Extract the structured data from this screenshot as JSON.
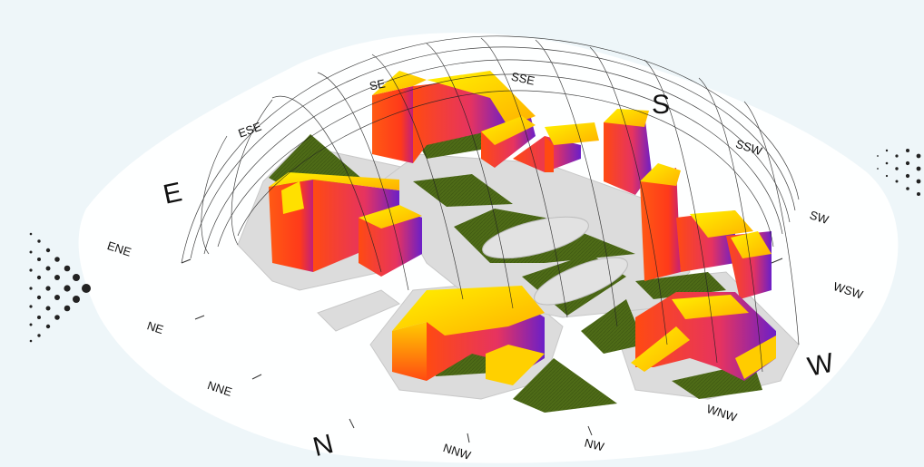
{
  "compass": {
    "E": "E",
    "S": "S",
    "W": "W",
    "N": "N",
    "ESE": "ESE",
    "SE": "SE",
    "SSE": "SSE",
    "SSW": "SSW",
    "SW": "SW",
    "WSW": "WSW",
    "WNW": "WNW",
    "NW": "NW",
    "NNW": "NNW",
    "NNE": "NNE",
    "NE": "NE",
    "ENE": "ENE"
  },
  "colors": {
    "background": "#eef6f9",
    "ground": "#ffffff",
    "site_plate": "#dcdcdc",
    "green": "#4e6b17",
    "radiation_high": "#ff4a12",
    "radiation_mid": "#ff9a1a",
    "radiation_top": "#f7f000",
    "radiation_low": "#6b1fc8"
  },
  "icons": {
    "left_dots": "halftone-dot-pattern",
    "right_dots": "halftone-dot-pattern"
  }
}
